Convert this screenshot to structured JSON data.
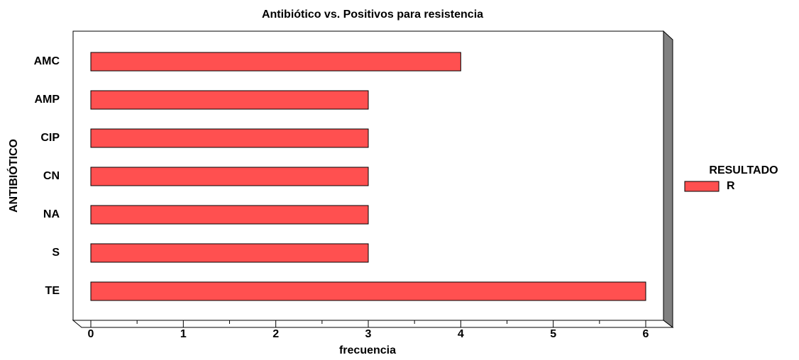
{
  "chart_data": {
    "type": "barh",
    "title": "Antibiótico vs. Positivos para resistencia",
    "xlabel": "frecuencia",
    "ylabel": "ANTIBIÓTICO",
    "legend_title": "RESULTADO",
    "categories": [
      "AMC",
      "AMP",
      "CIP",
      "CN",
      "NA",
      "S",
      "TE"
    ],
    "series": [
      {
        "name": "R",
        "color": "#ff5050",
        "values": [
          4,
          3,
          3,
          3,
          3,
          3,
          6
        ]
      }
    ],
    "xlim": [
      0,
      6
    ],
    "xticks": [
      0,
      1,
      2,
      3,
      4,
      5,
      6
    ],
    "legend": "right"
  }
}
